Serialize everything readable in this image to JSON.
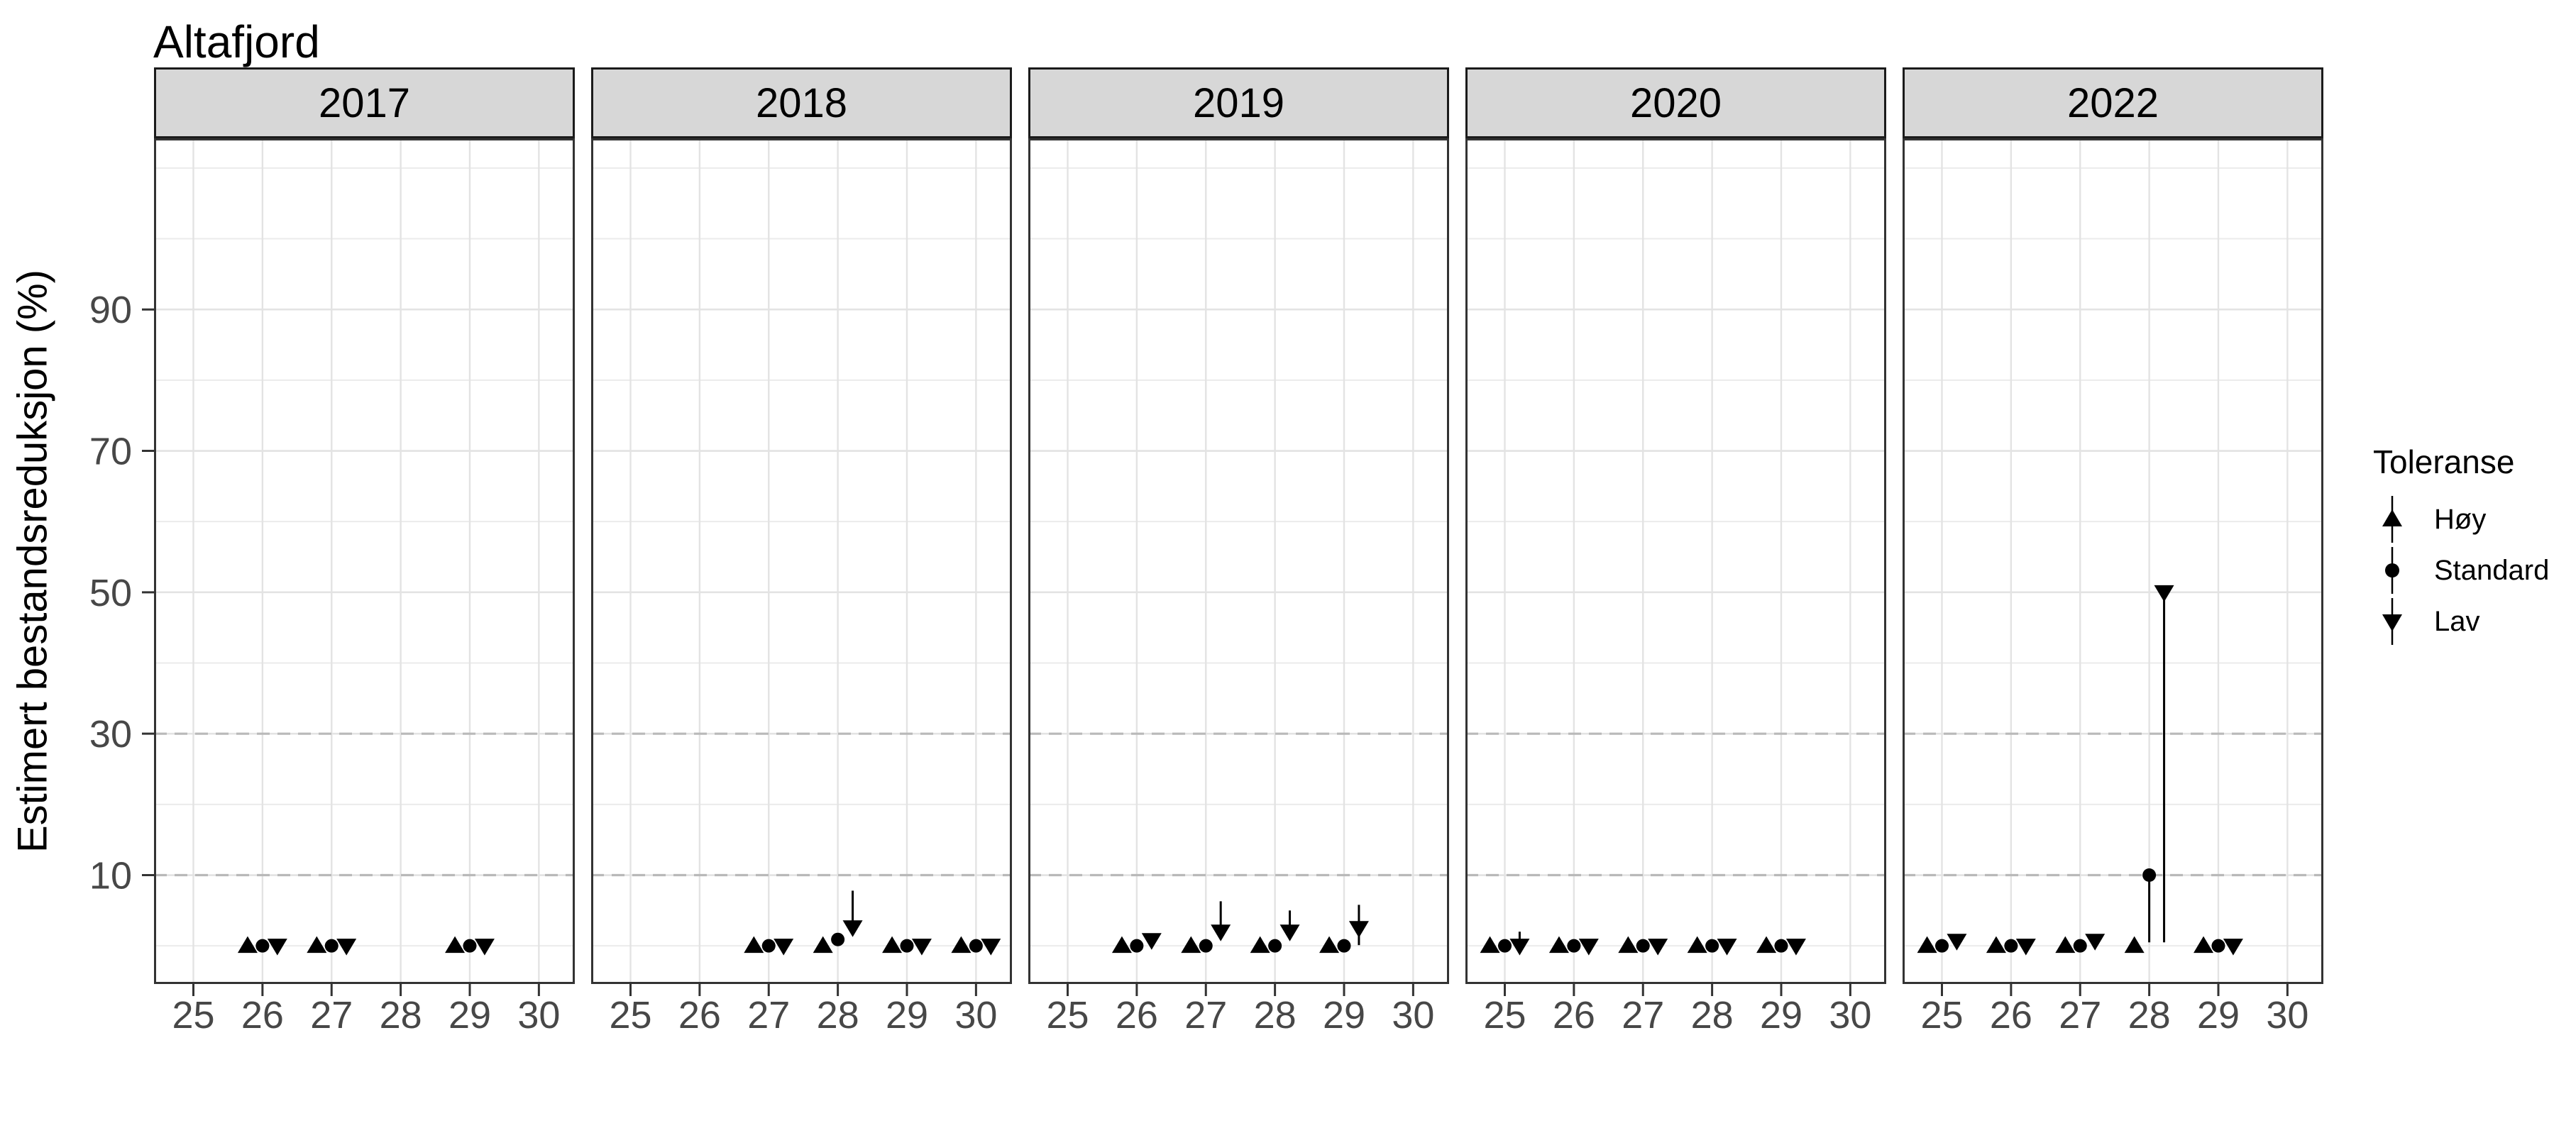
{
  "title": "Altafjord",
  "y_axis": {
    "label": "Estimert bestandsreduksjon (%)",
    "ticks": [
      90,
      70,
      50,
      30,
      10
    ]
  },
  "x_axis": {
    "ticks": [
      25,
      26,
      27,
      28,
      29,
      30
    ]
  },
  "legend": {
    "title": "Toleranse",
    "items": [
      {
        "label": "Høy",
        "symbol": "triangle-up"
      },
      {
        "label": "Standard",
        "symbol": "circle"
      },
      {
        "label": "Lav",
        "symbol": "triangle-down"
      }
    ]
  },
  "colors": {
    "background": "#ffffff",
    "marker": "#000000",
    "grid_minor": "#ebebeb",
    "grid_major": "#e3e3e3",
    "dashed_line": "#b9b9b9",
    "panel_border": "#333333",
    "strip_fill": "#d7d7d7",
    "strip_border": "#1b1b1b",
    "axis_text": "#474747",
    "tick_mark": "#333333",
    "text": "#000000"
  },
  "chart_data": {
    "type": "scatter",
    "facet_by": "year",
    "title": "Altafjord",
    "xlabel": "",
    "ylabel": "Estimert bestandsreduksjon (%)",
    "x": {
      "ticks": [
        25,
        26,
        27,
        28,
        29,
        30
      ],
      "range": [
        24.43,
        30.52
      ]
    },
    "y": {
      "ticks": [
        90,
        70,
        50,
        30,
        10
      ],
      "range": [
        -5.4,
        114.2
      ],
      "gridline_step": 10,
      "max_gridline": 110
    },
    "dashed_reference_lines_y": [
      30,
      10
    ],
    "tolerances": [
      "hoy",
      "standard",
      "lav"
    ],
    "symbols": {
      "hoy": "triangle-up",
      "standard": "circle",
      "lav": "triangle-down"
    },
    "dodge_offsets_weeks": {
      "hoy": -0.215,
      "standard": 0,
      "lav": 0.215
    },
    "facets": [
      {
        "year": "2017",
        "points": [
          {
            "week": 26,
            "hoy": {
              "v": 0
            },
            "standard": {
              "v": 0
            },
            "lav": {
              "v": 0
            }
          },
          {
            "week": 27,
            "hoy": {
              "v": 0
            },
            "standard": {
              "v": 0
            },
            "lav": {
              "v": 0
            }
          },
          {
            "week": 29,
            "hoy": {
              "v": 0
            },
            "standard": {
              "v": 0
            },
            "lav": {
              "v": 0
            }
          }
        ]
      },
      {
        "year": "2018",
        "points": [
          {
            "week": 27,
            "hoy": {
              "v": 0
            },
            "standard": {
              "v": 0
            },
            "lav": {
              "v": 0
            }
          },
          {
            "week": 28,
            "hoy": {
              "v": 0
            },
            "standard": {
              "v": 0.9
            },
            "lav": {
              "v": 2.6,
              "hi": 7.8
            }
          },
          {
            "week": 29,
            "hoy": {
              "v": 0
            },
            "standard": {
              "v": 0
            },
            "lav": {
              "v": 0
            }
          },
          {
            "week": 30,
            "hoy": {
              "v": 0
            },
            "standard": {
              "v": 0
            },
            "lav": {
              "v": 0
            }
          }
        ]
      },
      {
        "year": "2019",
        "points": [
          {
            "week": 26,
            "hoy": {
              "v": 0
            },
            "standard": {
              "v": 0
            },
            "lav": {
              "v": 0.8
            }
          },
          {
            "week": 27,
            "hoy": {
              "v": 0
            },
            "standard": {
              "v": 0
            },
            "lav": {
              "v": 2.0,
              "hi": 6.3
            }
          },
          {
            "week": 28,
            "hoy": {
              "v": 0
            },
            "standard": {
              "v": 0
            },
            "lav": {
              "v": 2.0,
              "hi": 5.0
            }
          },
          {
            "week": 29,
            "hoy": {
              "v": 0
            },
            "standard": {
              "v": 0
            },
            "lav": {
              "v": 2.5,
              "lo": 0.1,
              "hi": 5.8
            }
          }
        ]
      },
      {
        "year": "2020",
        "points": [
          {
            "week": 25,
            "hoy": {
              "v": 0
            },
            "standard": {
              "v": 0
            },
            "lav": {
              "v": 0,
              "hi": 2.0
            }
          },
          {
            "week": 26,
            "hoy": {
              "v": 0
            },
            "standard": {
              "v": 0
            },
            "lav": {
              "v": 0
            }
          },
          {
            "week": 27,
            "hoy": {
              "v": 0
            },
            "standard": {
              "v": 0
            },
            "lav": {
              "v": 0
            }
          },
          {
            "week": 28,
            "hoy": {
              "v": 0
            },
            "standard": {
              "v": 0
            },
            "lav": {
              "v": 0
            }
          },
          {
            "week": 29,
            "hoy": {
              "v": 0
            },
            "standard": {
              "v": 0
            },
            "lav": {
              "v": 0
            }
          }
        ]
      },
      {
        "year": "2022",
        "points": [
          {
            "week": 25,
            "hoy": {
              "v": 0
            },
            "standard": {
              "v": 0
            },
            "lav": {
              "v": 0.7
            }
          },
          {
            "week": 26,
            "hoy": {
              "v": 0
            },
            "standard": {
              "v": 0
            },
            "lav": {
              "v": 0
            }
          },
          {
            "week": 27,
            "hoy": {
              "v": 0
            },
            "standard": {
              "v": 0
            },
            "lav": {
              "v": 0.7
            }
          },
          {
            "week": 28,
            "hoy": {
              "v": 0
            },
            "standard": {
              "v": 10,
              "lo": 0.5
            },
            "lav": {
              "v": 50,
              "lo": 0.5
            }
          },
          {
            "week": 29,
            "hoy": {
              "v": 0
            },
            "standard": {
              "v": 0
            },
            "lav": {
              "v": 0
            }
          }
        ]
      }
    ]
  }
}
